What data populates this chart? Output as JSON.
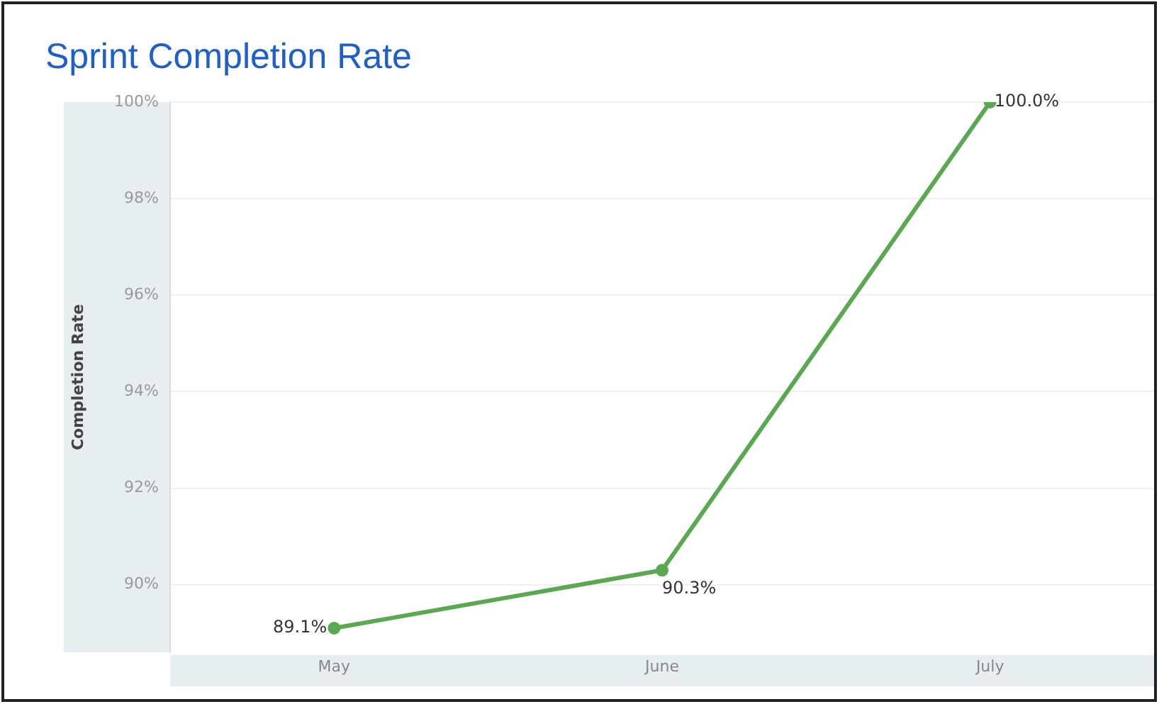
{
  "chart_data": {
    "type": "line",
    "title": "Sprint Completion Rate",
    "ylabel": "Completion Rate",
    "categories": [
      "May",
      "June",
      "July"
    ],
    "series": [
      {
        "color": "#5aa852",
        "values": [
          89.1,
          90.3,
          100.0
        ],
        "value_labels": [
          "89.1%",
          "90.3%",
          "100.0%"
        ]
      }
    ],
    "ylim": [
      88.6,
      100
    ],
    "yticks": [
      {
        "value": 90,
        "label": "90%"
      },
      {
        "value": 92,
        "label": "92%"
      },
      {
        "value": 94,
        "label": "94%"
      },
      {
        "value": 96,
        "label": "96%"
      },
      {
        "value": 98,
        "label": "98%"
      },
      {
        "value": 100,
        "label": "100%"
      }
    ],
    "grid": "y",
    "legend": false,
    "marker": "circle",
    "line_style": "solid"
  }
}
